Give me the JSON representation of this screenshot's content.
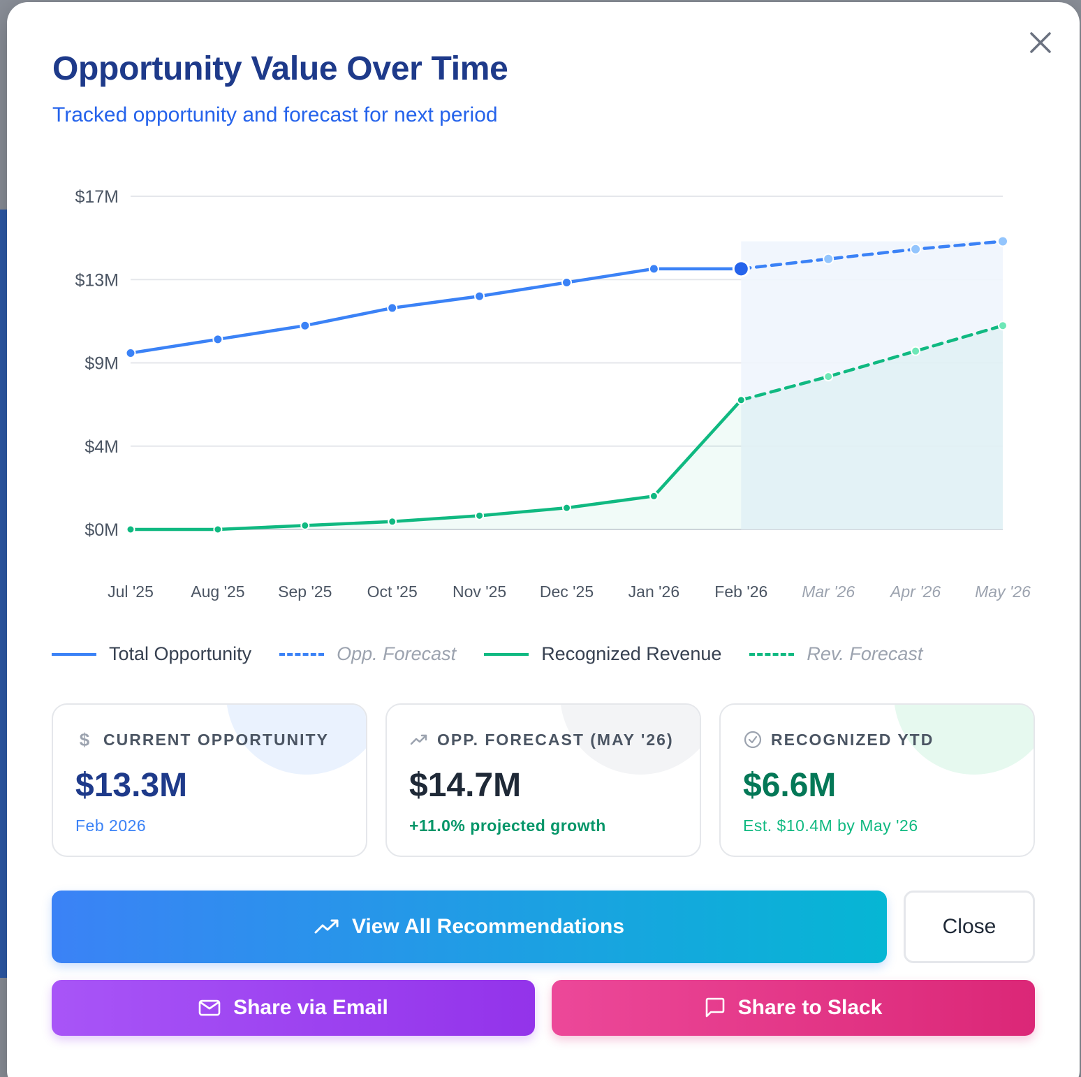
{
  "modal": {
    "title": "Opportunity Value Over Time",
    "subtitle": "Tracked opportunity and forecast for next period",
    "close_icon": "close-icon"
  },
  "colors": {
    "title": "#1e3a8a",
    "opportunity": "#3b82f6",
    "opportunity_forecast": "#93c5fd",
    "revenue": "#10b981",
    "revenue_forecast": "#6ee7b7",
    "primary_gradient_start": "#3b82f6",
    "primary_gradient_end": "#06b6d4"
  },
  "chart_data": {
    "type": "line",
    "x": [
      "Jul '25",
      "Aug '25",
      "Sep '25",
      "Oct '25",
      "Nov '25",
      "Dec '25",
      "Jan '26",
      "Feb '26",
      "Mar '26",
      "Apr '26",
      "May '26"
    ],
    "forecast_start_index": 7,
    "y_ticks": [
      "$0M",
      "$4M",
      "$9M",
      "$13M",
      "$17M"
    ],
    "y_tick_values": [
      0,
      4.25,
      8.5,
      12.75,
      17
    ],
    "ylim": [
      0,
      17
    ],
    "series": [
      {
        "name": "Total Opportunity",
        "style": "solid",
        "values": [
          9.0,
          9.7,
          10.4,
          11.3,
          11.9,
          12.6,
          13.3,
          13.3,
          null,
          null,
          null
        ]
      },
      {
        "name": "Opp. Forecast",
        "style": "dashed",
        "values": [
          null,
          null,
          null,
          null,
          null,
          null,
          null,
          13.3,
          13.8,
          14.3,
          14.7
        ]
      },
      {
        "name": "Recognized Revenue",
        "style": "solid",
        "values": [
          0.0,
          0.0,
          0.2,
          0.4,
          0.7,
          1.1,
          1.7,
          6.6,
          null,
          null,
          null
        ]
      },
      {
        "name": "Rev. Forecast",
        "style": "dashed",
        "values": [
          null,
          null,
          null,
          null,
          null,
          null,
          null,
          6.6,
          7.8,
          9.1,
          10.4
        ]
      }
    ]
  },
  "legend": [
    {
      "label": "Total Opportunity",
      "forecast": false
    },
    {
      "label": "Opp. Forecast",
      "forecast": true
    },
    {
      "label": "Recognized Revenue",
      "forecast": false
    },
    {
      "label": "Rev. Forecast",
      "forecast": true
    }
  ],
  "cards": [
    {
      "icon": "dollar-icon",
      "label": "CURRENT OPPORTUNITY",
      "value": "$13.3M",
      "sub": "Feb 2026"
    },
    {
      "icon": "trending-up-icon",
      "label": "OPP. FORECAST (MAY '26)",
      "value": "$14.7M",
      "sub": "+11.0% projected growth"
    },
    {
      "icon": "check-circle-icon",
      "label": "RECOGNIZED YTD",
      "value": "$6.6M",
      "sub": "Est. $10.4M by May '26"
    }
  ],
  "buttons": {
    "view_all": "View All Recommendations",
    "close": "Close",
    "share_email": "Share via Email",
    "share_slack": "Share to Slack"
  }
}
